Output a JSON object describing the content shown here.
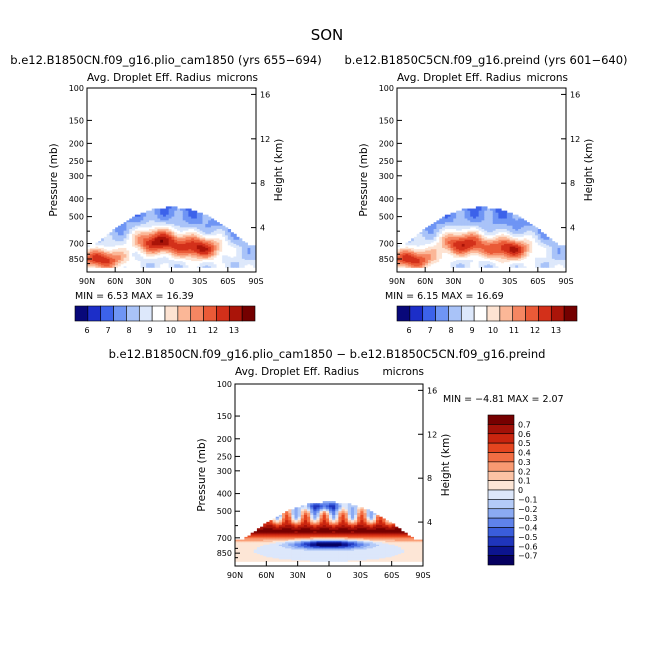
{
  "figure": {
    "title": "SON",
    "diff_title": "b.e12.B1850CN.f09_g16.plio_cam1850 − b.e12.B1850C5CN.f09_g16.preind"
  },
  "chart_data": [
    {
      "type": "heatmap",
      "title": "b.e12.B1850CN.f09_g16.plio_cam1850 (yrs 655−694)",
      "variable": "Avg. Droplet Eff. Radius",
      "units": "microns",
      "xlabel": "",
      "ylabel": "Pressure (mb)",
      "y2label": "Height (km)",
      "x_ticks": [
        "90N",
        "60N",
        "30N",
        "0",
        "30S",
        "60S",
        "90S"
      ],
      "y_ticks": [
        "100",
        "150",
        "200",
        "250",
        "300",
        "400",
        "500",
        "700",
        "850"
      ],
      "y2_ticks": [
        "4",
        "8",
        "12",
        "16"
      ],
      "min_label": "MIN =",
      "min_value": "6.53",
      "max_label": "MAX =",
      "max_value": "16.39",
      "colorbar_levels": [
        "6",
        "7",
        "8",
        "9",
        "10",
        "11",
        "12",
        "13"
      ],
      "ylim": [
        1000,
        100
      ],
      "xlim": [
        90,
        -90
      ],
      "field_peaks": [
        {
          "lat": 15,
          "p": 680,
          "value": 13
        },
        {
          "lat": -30,
          "p": 740,
          "value": 12.5
        },
        {
          "lat": 75,
          "p": 850,
          "value": 12
        }
      ]
    },
    {
      "type": "heatmap",
      "title": "b.e12.B1850C5CN.f09_g16.preind (yrs 601−640)",
      "variable": "Avg. Droplet Eff. Radius",
      "units": "microns",
      "xlabel": "",
      "ylabel": "Pressure (mb)",
      "y2label": "Height (km)",
      "x_ticks": [
        "90N",
        "60N",
        "30N",
        "0",
        "30S",
        "60S",
        "90S"
      ],
      "y_ticks": [
        "100",
        "150",
        "200",
        "250",
        "300",
        "400",
        "500",
        "700",
        "850"
      ],
      "y2_ticks": [
        "4",
        "8",
        "12",
        "16"
      ],
      "min_label": "MIN =",
      "min_value": "6.15",
      "max_label": "MAX =",
      "max_value": "16.69",
      "colorbar_levels": [
        "6",
        "7",
        "8",
        "9",
        "10",
        "11",
        "12",
        "13"
      ],
      "ylim": [
        1000,
        100
      ],
      "xlim": [
        90,
        -90
      ],
      "field_peaks": [
        {
          "lat": 20,
          "p": 700,
          "value": 12.5
        },
        {
          "lat": -30,
          "p": 750,
          "value": 12.5
        },
        {
          "lat": 75,
          "p": 850,
          "value": 12
        }
      ]
    },
    {
      "type": "heatmap",
      "title": "b.e12.B1850CN.f09_g16.plio_cam1850 − b.e12.B1850C5CN.f09_g16.preind",
      "variable": "Avg. Droplet Eff. Radius",
      "units": "microns",
      "xlabel": "",
      "ylabel": "Pressure (mb)",
      "y2label": "Height (km)",
      "x_ticks": [
        "90N",
        "60N",
        "30N",
        "0",
        "30S",
        "60S",
        "90S"
      ],
      "y_ticks": [
        "100",
        "150",
        "200",
        "250",
        "300",
        "400",
        "500",
        "700",
        "850"
      ],
      "y2_ticks": [
        "4",
        "8",
        "12",
        "16"
      ],
      "min_label": "MIN =",
      "min_value": "−4.81",
      "max_label": "MAX =",
      "max_value": "2.07",
      "colorbar_levels": [
        "0.7",
        "0.6",
        "0.5",
        "0.4",
        "0.3",
        "0.2",
        "0.1",
        "0",
        "−0.1",
        "−0.2",
        "−0.3",
        "−0.4",
        "−0.5",
        "−0.6",
        "−0.7"
      ],
      "ylim": [
        1000,
        100
      ],
      "xlim": [
        90,
        -90
      ]
    }
  ],
  "palettes": {
    "abs": [
      "#08087a",
      "#1c2ec8",
      "#3c62ea",
      "#6f95f4",
      "#a9c3f8",
      "#dde8fb",
      "#ffffff",
      "#fde3d2",
      "#fbb797",
      "#f58662",
      "#ea5a37",
      "#d3301a",
      "#aa1409",
      "#740000"
    ],
    "diff": [
      "#760000",
      "#a21108",
      "#c9250f",
      "#e5451f",
      "#f26d43",
      "#f99a72",
      "#fcc3a5",
      "#fde6d6",
      "#dce7fb",
      "#b4cbf8",
      "#8baaf3",
      "#5f82ea",
      "#3a5ddb",
      "#1f35bc",
      "#0c148f",
      "#060060"
    ]
  }
}
